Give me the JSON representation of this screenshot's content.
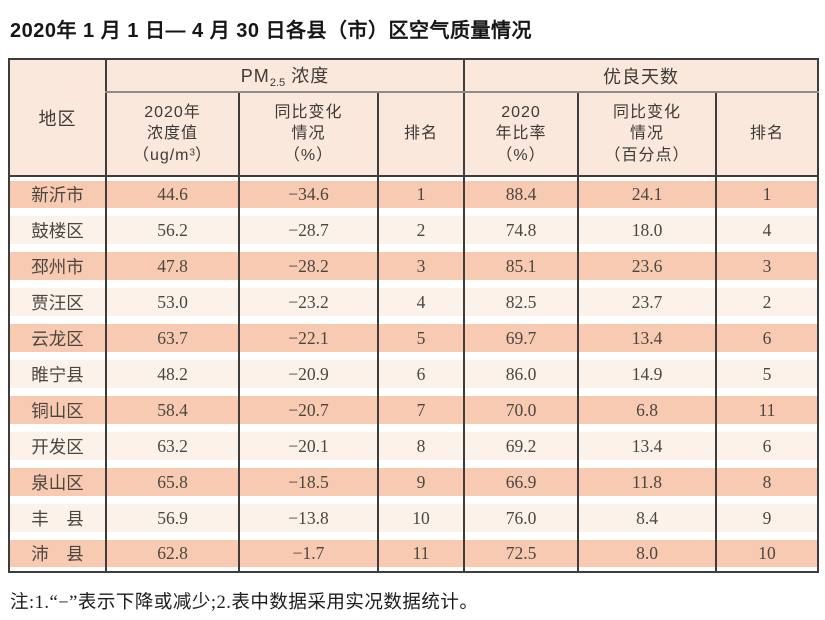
{
  "title": "2020年 1 月 1 日— 4 月 30 日各县（市）区空气质量情况",
  "note": "注:1.“−”表示下降或减少;2.表中数据采用实况数据统计。",
  "colors": {
    "row_odd": "#f7cab1",
    "row_even": "#fdf2ea",
    "header_bg": "#f9e8db",
    "border_dark": "#3d3d3d",
    "border_gray": "#8c8c8c"
  },
  "table": {
    "region_header": "地区",
    "groups": {
      "pm": {
        "prefix": "PM",
        "sub": "2.5",
        "suffix": " 浓度"
      },
      "good_days": {
        "label": "优良天数"
      }
    },
    "columns": {
      "pm_value": {
        "line1": "2020年",
        "line2": "浓度值",
        "line3_pre": "（ug/m",
        "line3_sup": "3",
        "line3_post": "）"
      },
      "pm_change": {
        "line1": "同比变化",
        "line2": "情况",
        "line3": "（%）"
      },
      "pm_rank": "排名",
      "ratio_value": {
        "line1": "2020",
        "line2": "年比率",
        "line3": "（%）"
      },
      "ratio_change": {
        "line1": "同比变化",
        "line2": "情况",
        "line3": "（百分点）"
      },
      "ratio_rank": "排名"
    },
    "rows": [
      {
        "region": "新沂市",
        "pm_value": "44.6",
        "pm_change": "−34.6",
        "pm_rank": "1",
        "ratio_value": "88.4",
        "ratio_change": "24.1",
        "ratio_rank": "1"
      },
      {
        "region": "鼓楼区",
        "pm_value": "56.2",
        "pm_change": "−28.7",
        "pm_rank": "2",
        "ratio_value": "74.8",
        "ratio_change": "18.0",
        "ratio_rank": "4"
      },
      {
        "region": "邳州市",
        "pm_value": "47.8",
        "pm_change": "−28.2",
        "pm_rank": "3",
        "ratio_value": "85.1",
        "ratio_change": "23.6",
        "ratio_rank": "3"
      },
      {
        "region": "贾汪区",
        "pm_value": "53.0",
        "pm_change": "−23.2",
        "pm_rank": "4",
        "ratio_value": "82.5",
        "ratio_change": "23.7",
        "ratio_rank": "2"
      },
      {
        "region": "云龙区",
        "pm_value": "63.7",
        "pm_change": "−22.1",
        "pm_rank": "5",
        "ratio_value": "69.7",
        "ratio_change": "13.4",
        "ratio_rank": "6"
      },
      {
        "region": "睢宁县",
        "pm_value": "48.2",
        "pm_change": "−20.9",
        "pm_rank": "6",
        "ratio_value": "86.0",
        "ratio_change": "14.9",
        "ratio_rank": "5"
      },
      {
        "region": "铜山区",
        "pm_value": "58.4",
        "pm_change": "−20.7",
        "pm_rank": "7",
        "ratio_value": "70.0",
        "ratio_change": "6.8",
        "ratio_rank": "11"
      },
      {
        "region": "开发区",
        "pm_value": "63.2",
        "pm_change": "−20.1",
        "pm_rank": "8",
        "ratio_value": "69.2",
        "ratio_change": "13.4",
        "ratio_rank": "6"
      },
      {
        "region": "泉山区",
        "pm_value": "65.8",
        "pm_change": "−18.5",
        "pm_rank": "9",
        "ratio_value": "66.9",
        "ratio_change": "11.8",
        "ratio_rank": "8"
      },
      {
        "region": "丰　县",
        "pm_value": "56.9",
        "pm_change": "−13.8",
        "pm_rank": "10",
        "ratio_value": "76.0",
        "ratio_change": "8.4",
        "ratio_rank": "9"
      },
      {
        "region": "沛　县",
        "pm_value": "62.8",
        "pm_change": "−1.7",
        "pm_rank": "11",
        "ratio_value": "72.5",
        "ratio_change": "8.0",
        "ratio_rank": "10"
      }
    ]
  },
  "chart_data": {
    "type": "table",
    "title": "2020年 1 月 1 日— 4 月 30 日各县（市）区空气质量情况",
    "column_groups": [
      "PM2.5浓度",
      "优良天数"
    ],
    "columns": [
      "地区",
      "2020年浓度值（ug/m³）",
      "同比变化情况（%）",
      "排名",
      "2020年比率（%）",
      "同比变化情况（百分点）",
      "排名"
    ],
    "rows": [
      [
        "新沂市",
        44.6,
        -34.6,
        1,
        88.4,
        24.1,
        1
      ],
      [
        "鼓楼区",
        56.2,
        -28.7,
        2,
        74.8,
        18.0,
        4
      ],
      [
        "邳州市",
        47.8,
        -28.2,
        3,
        85.1,
        23.6,
        3
      ],
      [
        "贾汪区",
        53.0,
        -23.2,
        4,
        82.5,
        23.7,
        2
      ],
      [
        "云龙区",
        63.7,
        -22.1,
        5,
        69.7,
        13.4,
        6
      ],
      [
        "睢宁县",
        48.2,
        -20.9,
        6,
        86.0,
        14.9,
        5
      ],
      [
        "铜山区",
        58.4,
        -20.7,
        7,
        70.0,
        6.8,
        11
      ],
      [
        "开发区",
        63.2,
        -20.1,
        8,
        69.2,
        13.4,
        6
      ],
      [
        "泉山区",
        65.8,
        -18.5,
        9,
        66.9,
        11.8,
        8
      ],
      [
        "丰县",
        56.9,
        -13.8,
        10,
        76.0,
        8.4,
        9
      ],
      [
        "沛县",
        62.8,
        -1.7,
        11,
        72.5,
        8.0,
        10
      ]
    ],
    "note": "注:1.“−”表示下降或减少;2.表中数据采用实况数据统计。"
  }
}
